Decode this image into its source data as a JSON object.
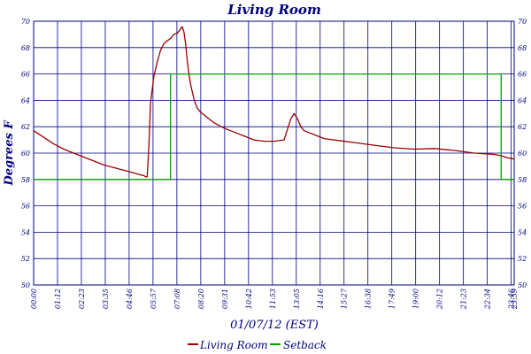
{
  "chart_data": {
    "type": "line",
    "title": "Living Room",
    "xlabel": "01/07/12 (EST)",
    "ylabel": "Degrees F",
    "ylim": [
      50,
      70
    ],
    "grid": true,
    "legend_position": "bottom-center",
    "y_ticks": [
      "50",
      "52",
      "54",
      "56",
      "58",
      "60",
      "62",
      "64",
      "66",
      "68",
      "70"
    ],
    "x_ticks": [
      "00:00",
      "01:12",
      "02:23",
      "03:35",
      "04:46",
      "05:57",
      "07:08",
      "08:20",
      "09:31",
      "10:42",
      "11:53",
      "13:05",
      "14:16",
      "15:27",
      "16:38",
      "17:49",
      "19:00",
      "20:12",
      "21:23",
      "22:34",
      "23:46",
      "23:59"
    ],
    "colors": {
      "axis": "#00007f",
      "grid": "#00007f",
      "title": "#00007f",
      "living_room": "#990000",
      "setback": "#00a000"
    },
    "series": [
      {
        "name": "Living Room",
        "x": [
          0,
          30,
          60,
          90,
          120,
          150,
          180,
          210,
          240,
          270,
          300,
          320,
          330,
          335,
          340,
          345,
          350,
          360,
          370,
          380,
          390,
          400,
          410,
          420,
          430,
          440,
          445,
          450,
          455,
          460,
          465,
          470,
          480,
          490,
          500,
          510,
          540,
          570,
          600,
          630,
          660,
          690,
          720,
          750,
          770,
          780,
          790,
          800,
          810,
          820,
          840,
          870,
          900,
          960,
          1020,
          1080,
          1140,
          1200,
          1260,
          1320,
          1380,
          1400,
          1420,
          1439
        ],
        "y": [
          61.7,
          61.2,
          60.7,
          60.3,
          60.0,
          59.7,
          59.4,
          59.1,
          58.9,
          58.7,
          58.5,
          58.35,
          58.3,
          58.2,
          58.2,
          60.5,
          63.8,
          65.8,
          66.9,
          67.8,
          68.3,
          68.5,
          68.7,
          69.0,
          69.1,
          69.4,
          69.6,
          69.2,
          68.3,
          67.0,
          66.0,
          65.2,
          64.1,
          63.4,
          63.1,
          62.9,
          62.3,
          61.9,
          61.6,
          61.3,
          61.0,
          60.9,
          60.9,
          61.0,
          62.6,
          63.0,
          62.6,
          62.0,
          61.7,
          61.6,
          61.4,
          61.1,
          61.0,
          60.8,
          60.6,
          60.4,
          60.3,
          60.35,
          60.2,
          60.0,
          59.9,
          59.8,
          59.65,
          59.55
        ]
      },
      {
        "name": "Setback",
        "x": [
          0,
          410,
          410,
          1400,
          1400,
          1439
        ],
        "y": [
          58,
          58,
          66,
          66,
          58,
          58
        ]
      }
    ]
  }
}
